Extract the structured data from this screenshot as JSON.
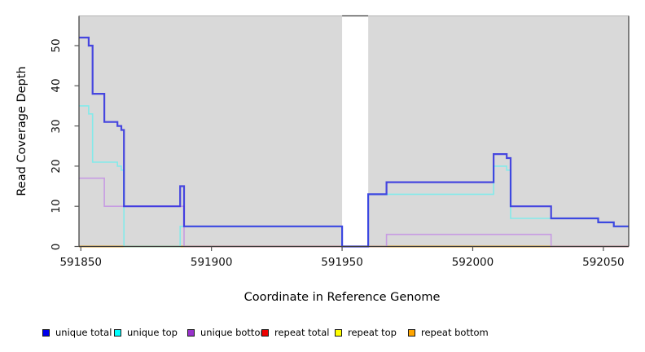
{
  "figure": {
    "bg_color": "#ffffff",
    "plot_bg_color": "#d9d9d9",
    "border_color": "#3a3a3a",
    "tick_color": "#555555"
  },
  "chart_data": {
    "type": "line",
    "subtype": "step",
    "title": "",
    "xlabel": "Coordinate in Reference Genome",
    "ylabel": "Read Coverage Depth",
    "x_ticks": [
      591850,
      591900,
      591950,
      592000,
      592050
    ],
    "y_ticks": [
      0,
      10,
      20,
      30,
      40,
      50
    ],
    "xlim": [
      591849.3,
      592059.7
    ],
    "ylim": [
      0,
      57.4
    ],
    "grid": false,
    "legend_position": "bottom",
    "gap_region": {
      "x_start": 591950,
      "x_end": 591960,
      "color": "#ffffff"
    },
    "series": [
      {
        "name": "unique total",
        "legend_color": "#0000EE",
        "line_color": "#2B2BDF",
        "line_width": 2.2,
        "opacity": 0.85,
        "points": [
          [
            591849.3,
            52
          ],
          [
            591853,
            50
          ],
          [
            591854.5,
            38
          ],
          [
            591859,
            31
          ],
          [
            591864,
            30
          ],
          [
            591865.5,
            29
          ],
          [
            591866.5,
            10
          ],
          [
            591888,
            15
          ],
          [
            591889.5,
            5
          ],
          [
            591950,
            0
          ],
          [
            591960,
            13
          ],
          [
            591967,
            16
          ],
          [
            592008,
            23
          ],
          [
            592013,
            22
          ],
          [
            592014.5,
            10
          ],
          [
            592030,
            7
          ],
          [
            592048,
            6
          ],
          [
            592054,
            5
          ],
          [
            592059.7,
            5
          ]
        ]
      },
      {
        "name": "unique top",
        "legend_color": "#00FFFF",
        "line_color": "#84EAEA",
        "line_width": 1.6,
        "opacity": 1,
        "points": [
          [
            591849.3,
            35
          ],
          [
            591853,
            33
          ],
          [
            591854.5,
            21
          ],
          [
            591864,
            20
          ],
          [
            591865.5,
            19
          ],
          [
            591866.5,
            0
          ],
          [
            591888,
            5
          ],
          [
            591950,
            0
          ],
          [
            591960,
            13
          ],
          [
            592008,
            20
          ],
          [
            592013,
            19
          ],
          [
            592014.5,
            7
          ],
          [
            592048,
            6
          ],
          [
            592054,
            5
          ],
          [
            592059.7,
            5
          ]
        ]
      },
      {
        "name": "unique bottom",
        "legend_color": "#9932CC",
        "line_color": "#C79CE2",
        "line_width": 1.6,
        "opacity": 1,
        "points": [
          [
            591849.3,
            17
          ],
          [
            591859,
            10
          ],
          [
            591889.5,
            0
          ],
          [
            591967,
            3
          ],
          [
            592030,
            0
          ],
          [
            592059.7,
            0
          ]
        ]
      },
      {
        "name": "repeat total",
        "legend_color": "#EE0000",
        "line_color": "#E0558A",
        "line_width": 1.4,
        "opacity": 1,
        "points": [
          [
            591849.3,
            0
          ],
          [
            592059.7,
            0
          ]
        ]
      },
      {
        "name": "repeat top",
        "legend_color": "#FFFF00",
        "line_color": "#FFFF00",
        "line_width": 1.4,
        "opacity": 1,
        "points": [
          [
            591849.3,
            0
          ],
          [
            592059.7,
            0
          ]
        ]
      },
      {
        "name": "repeat bottom",
        "legend_color": "#FFA500",
        "line_color": "#FFA500",
        "line_width": 1.6,
        "opacity": 1,
        "points": [
          [
            591849.3,
            0
          ],
          [
            592059.7,
            0
          ]
        ]
      }
    ],
    "baseline_segments": [
      {
        "x_start": 591849.3,
        "x_end": 591866.5,
        "color": "#FFA500"
      },
      {
        "x_start": 591866.5,
        "x_end": 591888,
        "color": "#8FD9A4"
      },
      {
        "x_start": 591888,
        "x_end": 591889.5,
        "color": "#FFA500"
      },
      {
        "x_start": 591889.5,
        "x_end": 591950,
        "color": "#E0558A"
      },
      {
        "x_start": 591950,
        "x_end": 591960,
        "color": "#6A5AEC"
      },
      {
        "x_start": 591960,
        "x_end": 592030,
        "color": "#FFA500"
      },
      {
        "x_start": 592030,
        "x_end": 592059.7,
        "color": "#E0558A"
      }
    ]
  },
  "legend": {
    "items": [
      {
        "label": "unique total",
        "color": "#0000EE"
      },
      {
        "label": "unique top",
        "color": "#00FFFF"
      },
      {
        "label": "unique bottom",
        "color": "#9932CC"
      },
      {
        "label": "repeat total",
        "color": "#EE0000"
      },
      {
        "label": "repeat top",
        "color": "#FFFF00"
      },
      {
        "label": "repeat bottom",
        "color": "#FFA500"
      }
    ]
  }
}
